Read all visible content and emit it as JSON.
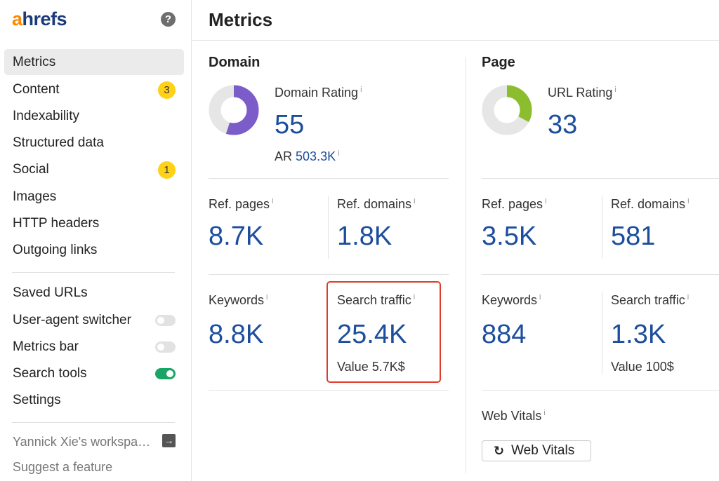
{
  "brand": {
    "logo_first": "a",
    "logo_rest": "hrefs"
  },
  "sidebar": {
    "help_icon": "?",
    "items": [
      {
        "label": "Metrics",
        "active": true
      },
      {
        "label": "Content",
        "badge": "3"
      },
      {
        "label": "Indexability"
      },
      {
        "label": "Structured data"
      },
      {
        "label": "Social",
        "badge": "1"
      },
      {
        "label": "Images"
      },
      {
        "label": "HTTP headers"
      },
      {
        "label": "Outgoing links"
      }
    ],
    "tools": [
      {
        "label": "Saved URLs"
      },
      {
        "label": "User-agent switcher",
        "toggle": false
      },
      {
        "label": "Metrics bar",
        "toggle": false
      },
      {
        "label": "Search tools",
        "toggle": true
      },
      {
        "label": "Settings"
      }
    ],
    "workspace": "Yannick Xie's workspa…",
    "suggest": "Suggest a feature"
  },
  "main": {
    "title": "Metrics",
    "info_mark": "i",
    "domain": {
      "title": "Domain",
      "rating_label": "Domain Rating",
      "rating_value": "55",
      "rating_fraction": 0.55,
      "rating_color": "#7b5cc9",
      "ar_label": "AR",
      "ar_value": "503.3K",
      "ref_pages_label": "Ref. pages",
      "ref_pages_value": "8.7K",
      "ref_domains_label": "Ref. domains",
      "ref_domains_value": "1.8K",
      "keywords_label": "Keywords",
      "keywords_value": "8.8K",
      "traffic_label": "Search traffic",
      "traffic_value": "25.4K",
      "traffic_worth": "Value 5.7K$"
    },
    "page": {
      "title": "Page",
      "rating_label": "URL Rating",
      "rating_value": "33",
      "rating_fraction": 0.33,
      "rating_color": "#8cbd2f",
      "ref_pages_label": "Ref. pages",
      "ref_pages_value": "3.5K",
      "ref_domains_label": "Ref. domains",
      "ref_domains_value": "581",
      "keywords_label": "Keywords",
      "keywords_value": "884",
      "traffic_label": "Search traffic",
      "traffic_value": "1.3K",
      "traffic_worth": "Value 100$",
      "web_vitals_label": "Web Vitals",
      "web_vitals_button": "Web Vitals"
    }
  }
}
